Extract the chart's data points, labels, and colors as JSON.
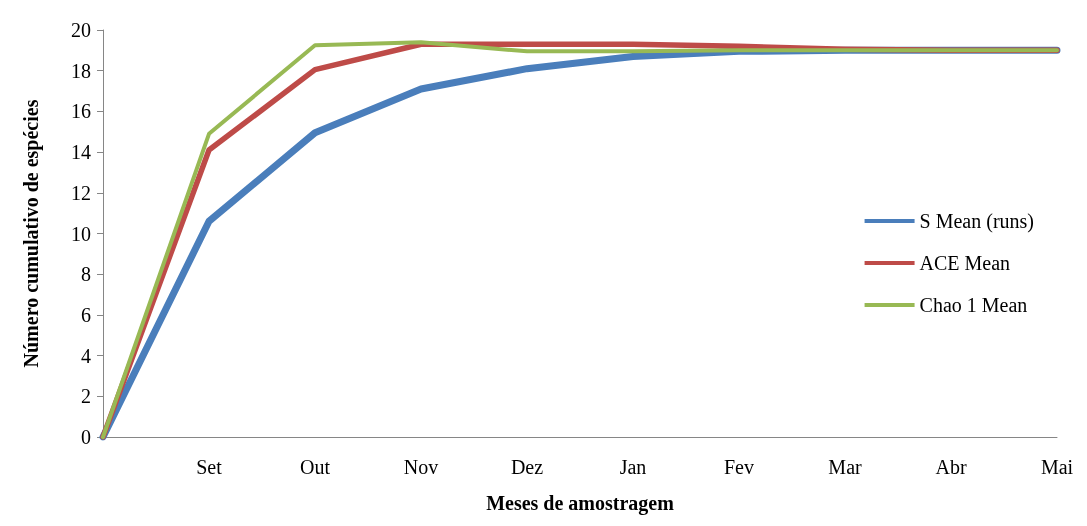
{
  "chart_data": {
    "type": "line",
    "xlabel": "Meses de amostragem",
    "ylabel": "Número cumulativo de espécies",
    "categories": [
      null,
      "Set",
      "Out",
      "Nov",
      "Dez",
      "Jan",
      "Fev",
      "Mar",
      "Abr",
      "Mai"
    ],
    "series": [
      {
        "name": "S Mean (runs)",
        "color": "#4a7ebb",
        "values": [
          0,
          10.6,
          14.95,
          17.1,
          18.1,
          18.7,
          18.95,
          19,
          19,
          19
        ]
      },
      {
        "name": "ACE Mean",
        "color": "#be4b48",
        "values": [
          0,
          14.1,
          18.05,
          19.3,
          19.3,
          19.3,
          19.2,
          19.05,
          19,
          19
        ]
      },
      {
        "name": "Chao 1 Mean",
        "color": "#98b954",
        "values": [
          0,
          14.9,
          19.25,
          19.4,
          18.95,
          18.95,
          19,
          19,
          19,
          19
        ]
      }
    ],
    "ylim": [
      0,
      20
    ],
    "yticks": [
      0,
      2,
      4,
      6,
      8,
      10,
      12,
      14,
      16,
      18,
      20
    ],
    "grid": false,
    "legend": "right",
    "marker": "none",
    "line_style": "solid"
  }
}
